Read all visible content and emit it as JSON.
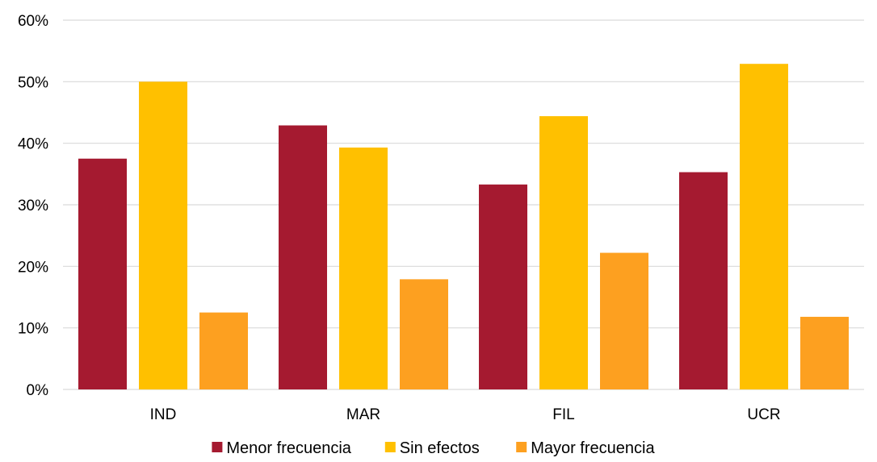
{
  "chart_data": {
    "type": "bar",
    "title": "",
    "xlabel": "",
    "ylabel": "",
    "categories": [
      "IND",
      "MAR",
      "FIL",
      "UCR"
    ],
    "ylim": [
      0,
      60
    ],
    "yticks": [
      "0%",
      "10%",
      "20%",
      "30%",
      "40%",
      "50%",
      "60%"
    ],
    "grid": true,
    "legend_position": "bottom",
    "series": [
      {
        "name": "Menor frecuencia",
        "color": "#A51A30",
        "values": [
          37.5,
          42.9,
          33.3,
          35.3
        ]
      },
      {
        "name": "Sin efectos",
        "color": "#FFC000",
        "values": [
          50.0,
          39.3,
          44.4,
          52.9
        ]
      },
      {
        "name": "Mayor frecuencia",
        "color": "#FDA020",
        "values": [
          12.5,
          17.9,
          22.2,
          11.8
        ]
      }
    ],
    "gridline_color": "#D9D9D9"
  }
}
